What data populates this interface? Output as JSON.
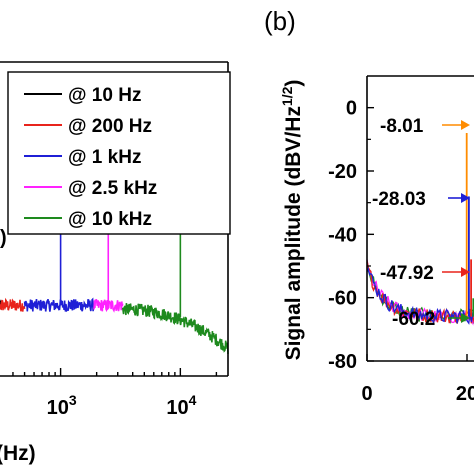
{
  "chart_data": [
    {
      "type": "line",
      "panel": "(a)",
      "xscale": "log",
      "xlabel": "(Hz)",
      "xlim": [
        300,
        25000
      ],
      "xticks": [
        {
          "value": 1000,
          "base": "10",
          "exp": "3"
        },
        {
          "value": 10000,
          "base": "10",
          "exp": "4"
        }
      ],
      "legend_position": "top-right",
      "partial_label": ")",
      "series": [
        {
          "name": "@ 10 Hz",
          "color": "#000000",
          "x_range": [
            300,
            320
          ],
          "level": -52,
          "spike_at": 10
        },
        {
          "name": "@ 200 Hz",
          "color": "#e8241c",
          "x_range": [
            300,
            500
          ],
          "level": -52,
          "spike_at": 200
        },
        {
          "name": "@ 1 kHz",
          "color": "#1f1fd6",
          "x_range": [
            500,
            1900
          ],
          "level": -52,
          "spike_at": 1000
        },
        {
          "name": "@ 2.5 kHz",
          "color": "#ff22ff",
          "x_range": [
            1900,
            3300
          ],
          "level": -52,
          "spike_at": 2500
        },
        {
          "name": "@ 10 kHz",
          "color": "#1e8a1e",
          "x_range": [
            3300,
            25000
          ],
          "level_start": -53,
          "level_end": -63,
          "spike_at": 10000
        }
      ]
    },
    {
      "type": "line",
      "panel": "(b)",
      "ylabel": "Signal amplitude (dBV/Hz",
      "ylabel_sup": "1/2",
      "ylabel_close": ")",
      "ylim": [
        -80,
        10
      ],
      "yticks": [
        "0",
        "-20",
        "-40",
        "-60",
        "-80"
      ],
      "ytick_values": [
        0,
        -20,
        -40,
        -60,
        -80
      ],
      "xlim": [
        0,
        25
      ],
      "xticks": [
        "0",
        "20"
      ],
      "xtick_values": [
        0,
        20
      ],
      "annotations": [
        {
          "label": "-8.01",
          "value": -8.01,
          "color": "#ff8c00"
        },
        {
          "label": "-28.03",
          "value": -28.03,
          "color": "#1f1fd6"
        },
        {
          "label": "-47.92",
          "value": -47.92,
          "color": "#e8241c"
        },
        {
          "label": "-60.2",
          "value": -60.2,
          "color": "#1e8a1e"
        }
      ],
      "peak_x": 20.6,
      "noise_floor": -66
    }
  ]
}
